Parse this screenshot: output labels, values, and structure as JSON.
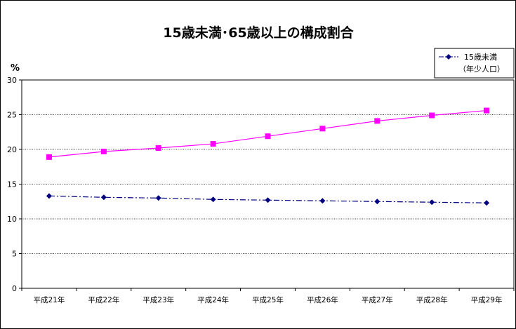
{
  "chart_data": {
    "type": "line",
    "title": "15歳未満･65歳以上の構成割合",
    "ylabel": "%",
    "xlabel": "",
    "ylim": [
      0,
      30
    ],
    "yticks": [
      0,
      5,
      10,
      15,
      20,
      25,
      30
    ],
    "grid": "horizontal-dotted",
    "legend_position": "top-right",
    "categories": [
      "平成21年",
      "平成22年",
      "平成23年",
      "平成24年",
      "平成25年",
      "平成26年",
      "平成27年",
      "平成28年",
      "平成29年"
    ],
    "series": [
      {
        "name": "15歳未満",
        "name_note": "（年少人口）",
        "color": "#000080",
        "marker": "diamond",
        "line_style": "dash-dot",
        "values": [
          13.3,
          13.1,
          13.0,
          12.8,
          12.7,
          12.6,
          12.5,
          12.4,
          12.3
        ]
      },
      {
        "name": "",
        "color": "#ff00ff",
        "marker": "square",
        "line_style": "solid",
        "values": [
          18.9,
          19.7,
          20.2,
          20.8,
          21.9,
          23.0,
          24.1,
          24.9,
          25.6
        ]
      }
    ]
  }
}
